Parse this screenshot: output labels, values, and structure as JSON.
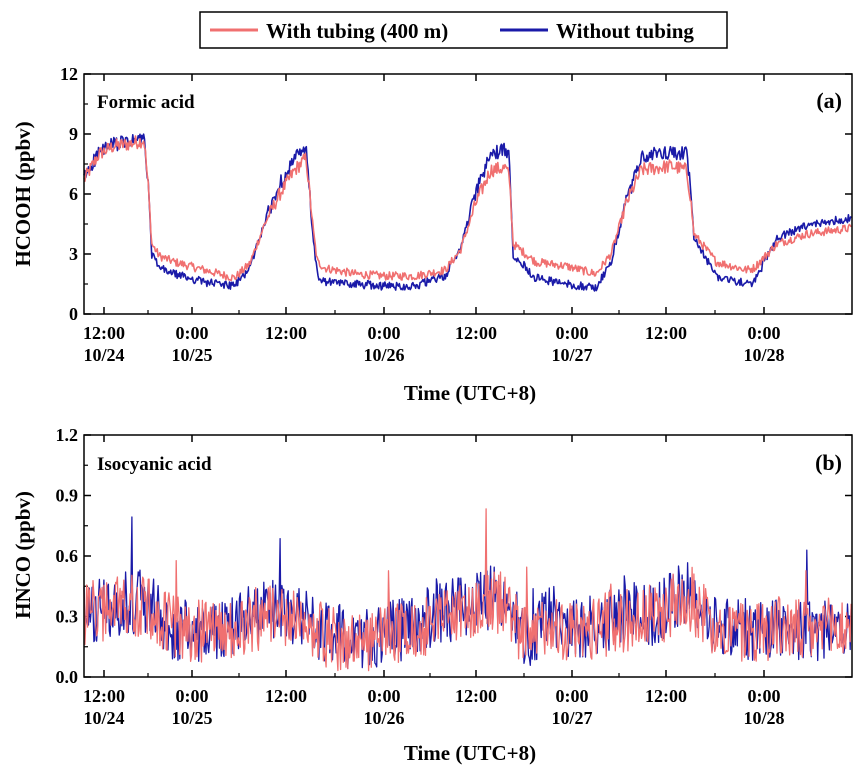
{
  "figure": {
    "legend": {
      "placement": "top-center",
      "entries": [
        {
          "label": "With tubing (400 m)",
          "color": "#f07070"
        },
        {
          "label": "Without tubing",
          "color": "#1a1aa8"
        }
      ]
    }
  },
  "chart_data": [
    {
      "type": "line",
      "panel": "(a)",
      "title": "Formic acid",
      "ylabel": "HCOOH (ppbv)",
      "xlabel": "Time (UTC+8)",
      "xlim_hours": [
        0,
        102
      ],
      "ylim": [
        0,
        12
      ],
      "yticks": [
        0,
        3,
        6,
        9,
        12
      ],
      "xtick_labels": [
        {
          "line1": "12:00",
          "line2": "10/24"
        },
        {
          "line1": "0:00",
          "line2": "10/25"
        },
        {
          "line1": "12:00",
          "line2": ""
        },
        {
          "line1": "0:00",
          "line2": "10/26"
        },
        {
          "line1": "12:00",
          "line2": ""
        },
        {
          "line1": "0:00",
          "line2": "10/27"
        },
        {
          "line1": "12:00",
          "line2": ""
        },
        {
          "line1": "0:00",
          "line2": "10/28"
        }
      ],
      "grid": false,
      "series": [
        {
          "name": "With tubing (400 m)",
          "color": "#f07070",
          "x": [
            0,
            2,
            4,
            6,
            8,
            8.5,
            9,
            10,
            12,
            14,
            16,
            18,
            20,
            22,
            24,
            26,
            28,
            29.5,
            30.5,
            31,
            32,
            36,
            40,
            44,
            48,
            50,
            52,
            54,
            56,
            56.5,
            57,
            60,
            64,
            68,
            70,
            72,
            74,
            76,
            78,
            80,
            80.5,
            81,
            84,
            87,
            88,
            89,
            92,
            96,
            100,
            102
          ],
          "y": [
            6.7,
            8.0,
            8.4,
            8.5,
            8.7,
            6.5,
            3.5,
            2.9,
            2.6,
            2.4,
            2.2,
            2.0,
            1.8,
            2.5,
            4.5,
            6.0,
            7.2,
            7.8,
            4.0,
            2.6,
            2.3,
            2.0,
            1.9,
            1.9,
            2.2,
            3.2,
            5.5,
            7.2,
            7.3,
            6.8,
            3.5,
            2.6,
            2.4,
            2.0,
            3.0,
            5.5,
            7.2,
            7.3,
            7.4,
            7.2,
            6.0,
            4.0,
            2.6,
            2.3,
            2.2,
            2.3,
            3.5,
            4.0,
            4.2,
            4.3
          ]
        },
        {
          "name": "Without tubing",
          "color": "#1a1aa8",
          "x": [
            0,
            2,
            4,
            6,
            8,
            8.5,
            9,
            10,
            12,
            14,
            16,
            18,
            20,
            22,
            24,
            26,
            28,
            29.5,
            30.5,
            31,
            32,
            36,
            40,
            44,
            48,
            50,
            52,
            54,
            56,
            56.5,
            57,
            60,
            64,
            68,
            70,
            72,
            74,
            76,
            78,
            80,
            80.5,
            81,
            84,
            87,
            88,
            89,
            92,
            96,
            100,
            102
          ],
          "y": [
            6.8,
            8.1,
            8.5,
            8.6,
            8.8,
            6.5,
            3.0,
            2.3,
            2.0,
            1.8,
            1.6,
            1.5,
            1.4,
            2.3,
            4.6,
            6.5,
            7.8,
            8.2,
            3.5,
            1.9,
            1.6,
            1.5,
            1.4,
            1.4,
            1.9,
            3.3,
            6.0,
            8.0,
            8.2,
            7.8,
            3.0,
            1.8,
            1.5,
            1.3,
            2.6,
            5.6,
            7.8,
            8.0,
            8.1,
            8.0,
            6.5,
            3.8,
            1.9,
            1.6,
            1.5,
            1.6,
            3.8,
            4.4,
            4.7,
            4.8
          ]
        }
      ]
    },
    {
      "type": "line",
      "panel": "(b)",
      "title": "Isocyanic acid",
      "ylabel": "HNCO (ppbv)",
      "xlabel": "Time (UTC+8)",
      "xlim_hours": [
        0,
        102
      ],
      "ylim": [
        0,
        1.2
      ],
      "yticks": [
        0.0,
        0.3,
        0.6,
        0.9,
        1.2
      ],
      "xtick_labels": [
        {
          "line1": "12:00",
          "line2": "10/24"
        },
        {
          "line1": "0:00",
          "line2": "10/25"
        },
        {
          "line1": "12:00",
          "line2": ""
        },
        {
          "line1": "0:00",
          "line2": "10/26"
        },
        {
          "line1": "12:00",
          "line2": ""
        },
        {
          "line1": "0:00",
          "line2": "10/27"
        },
        {
          "line1": "12:00",
          "line2": ""
        },
        {
          "line1": "0:00",
          "line2": "10/28"
        }
      ],
      "grid": false,
      "series": [
        {
          "name": "With tubing (400 m)",
          "color": "#f07070",
          "x": [
            0,
            4,
            8,
            12,
            16,
            20,
            24,
            28,
            32,
            36,
            40,
            44,
            48,
            52,
            56,
            58,
            60,
            62,
            64,
            68,
            72,
            76,
            80,
            84,
            88,
            92,
            96,
            100,
            102
          ],
          "y": [
            0.32,
            0.34,
            0.36,
            0.24,
            0.22,
            0.25,
            0.3,
            0.3,
            0.2,
            0.18,
            0.2,
            0.25,
            0.3,
            0.36,
            0.38,
            0.22,
            0.2,
            0.3,
            0.22,
            0.25,
            0.28,
            0.3,
            0.4,
            0.25,
            0.22,
            0.25,
            0.22,
            0.24,
            0.25
          ]
        },
        {
          "name": "Without tubing",
          "color": "#1a1aa8",
          "x": [
            0,
            4,
            8,
            12,
            16,
            20,
            24,
            28,
            32,
            36,
            40,
            44,
            48,
            52,
            56,
            58,
            60,
            62,
            64,
            68,
            72,
            76,
            80,
            84,
            88,
            92,
            96,
            100,
            102
          ],
          "y": [
            0.32,
            0.36,
            0.38,
            0.24,
            0.23,
            0.27,
            0.32,
            0.32,
            0.21,
            0.19,
            0.21,
            0.26,
            0.32,
            0.38,
            0.4,
            0.23,
            0.21,
            0.33,
            0.23,
            0.26,
            0.3,
            0.31,
            0.42,
            0.26,
            0.23,
            0.26,
            0.23,
            0.25,
            0.26
          ]
        }
      ]
    }
  ]
}
